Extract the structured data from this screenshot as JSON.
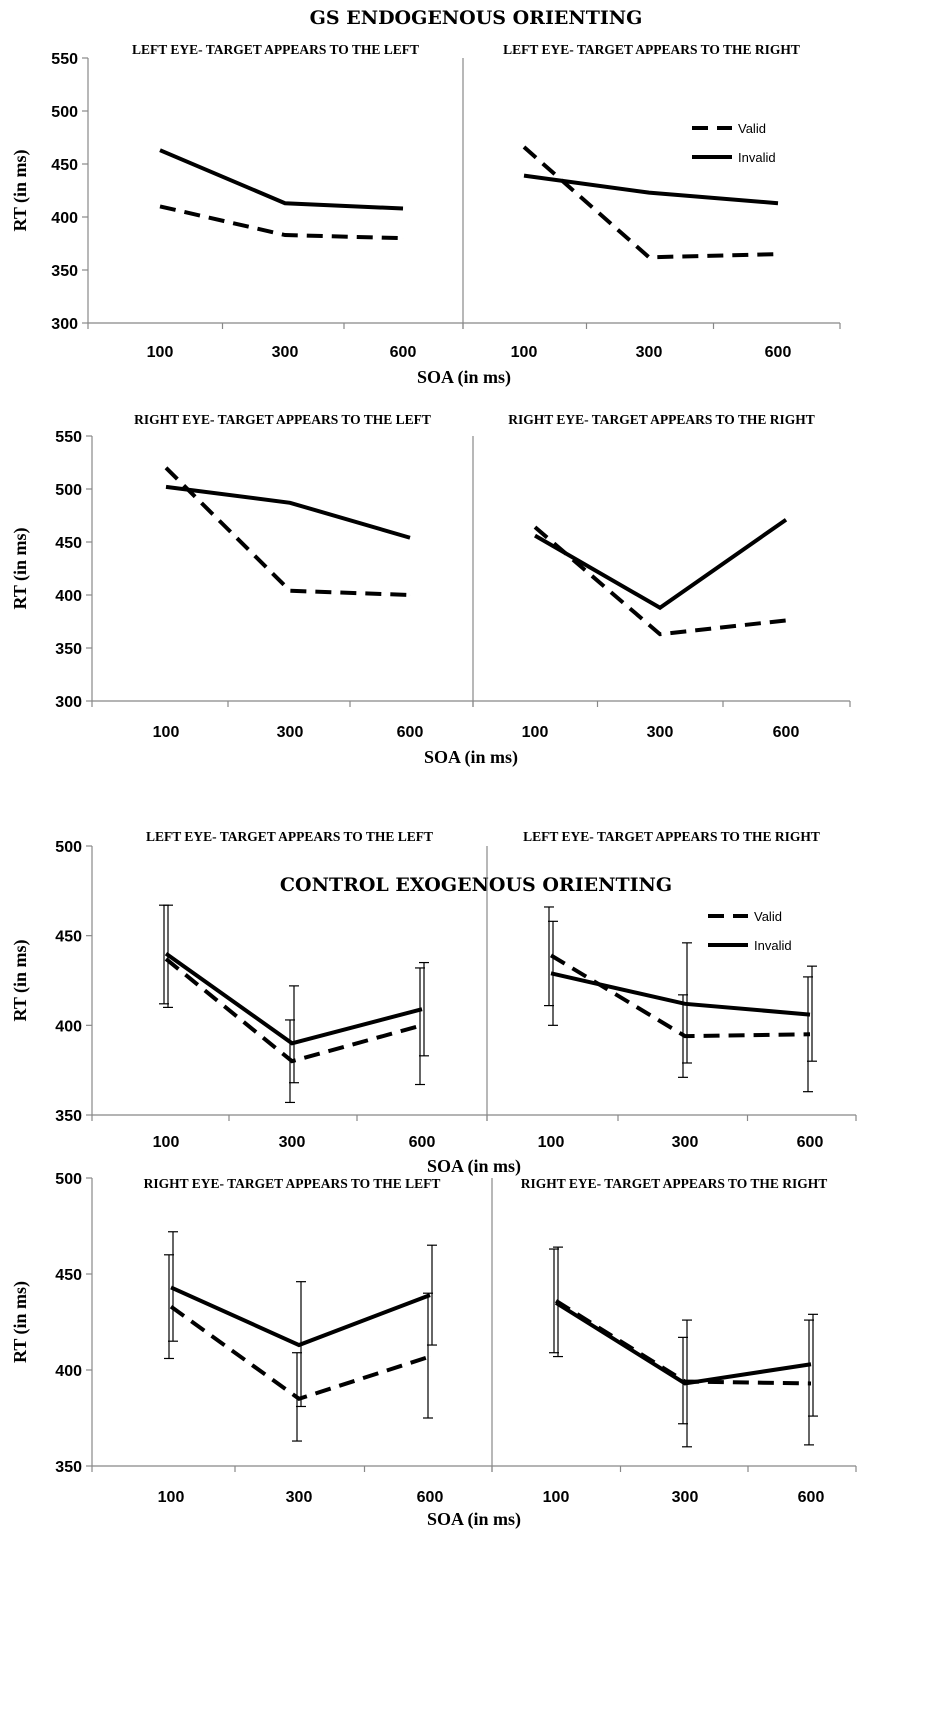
{
  "titles": {
    "endogenous": "GS ENDOGENOUS ORIENTING",
    "exogenous": "CONTROL EXOGENOUS ORIENTING"
  },
  "legend": {
    "valid": "Valid",
    "invalid": "Invalid"
  },
  "chart_data": [
    {
      "type": "line",
      "title": "LEFT EYE- TARGET APPEARS TO THE LEFT",
      "xlabel": "SOA (in ms)",
      "ylabel": "RT (in ms)",
      "categories": [
        "100",
        "300",
        "600"
      ],
      "yticks": [
        300,
        350,
        400,
        450,
        500,
        550
      ],
      "ylim": [
        300,
        550
      ],
      "series": [
        {
          "name": "Valid",
          "values": [
            410,
            383,
            380
          ]
        },
        {
          "name": "Invalid",
          "values": [
            463,
            413,
            408
          ]
        }
      ]
    },
    {
      "type": "line",
      "title": "LEFT EYE- TARGET APPEARS TO THE RIGHT",
      "xlabel": "SOA (in ms)",
      "ylabel": "RT (in ms)",
      "categories": [
        "100",
        "300",
        "600"
      ],
      "yticks": [
        300,
        350,
        400,
        450,
        500,
        550
      ],
      "ylim": [
        300,
        550
      ],
      "legend": "top-right",
      "series": [
        {
          "name": "Valid",
          "values": [
            466,
            362,
            365
          ]
        },
        {
          "name": "Invalid",
          "values": [
            439,
            423,
            413
          ]
        }
      ]
    },
    {
      "type": "line",
      "title": "RIGHT EYE- TARGET APPEARS TO THE LEFT",
      "xlabel": "SOA (in ms)",
      "ylabel": "RT (in ms)",
      "categories": [
        "100",
        "300",
        "600"
      ],
      "yticks": [
        300,
        350,
        400,
        450,
        500,
        550
      ],
      "ylim": [
        300,
        550
      ],
      "series": [
        {
          "name": "Valid",
          "values": [
            520,
            404,
            400
          ]
        },
        {
          "name": "Invalid",
          "values": [
            502,
            487,
            454
          ]
        }
      ]
    },
    {
      "type": "line",
      "title": "RIGHT EYE- TARGET APPEARS TO THE RIGHT",
      "xlabel": "SOA (in ms)",
      "ylabel": "RT (in ms)",
      "categories": [
        "100",
        "300",
        "600"
      ],
      "yticks": [
        300,
        350,
        400,
        450,
        500,
        550
      ],
      "ylim": [
        300,
        550
      ],
      "series": [
        {
          "name": "Valid",
          "values": [
            464,
            363,
            376
          ]
        },
        {
          "name": "Invalid",
          "values": [
            456,
            388,
            471
          ]
        }
      ]
    },
    {
      "type": "line",
      "title": "LEFT EYE- TARGET APPEARS TO THE LEFT",
      "xlabel": "SOA (in ms)",
      "ylabel": "RT (in ms)",
      "categories": [
        "100",
        "300",
        "600"
      ],
      "yticks": [
        350,
        400,
        450,
        500
      ],
      "ylim": [
        350,
        500
      ],
      "series": [
        {
          "name": "Valid",
          "values": [
            437,
            380,
            400
          ],
          "error_low": [
            412,
            357,
            367
          ],
          "error_high": [
            467,
            403,
            432
          ]
        },
        {
          "name": "Invalid",
          "values": [
            440,
            390,
            409
          ],
          "error_low": [
            410,
            368,
            383
          ],
          "error_high": [
            467,
            422,
            435
          ]
        }
      ]
    },
    {
      "type": "line",
      "title": "LEFT EYE- TARGET APPEARS TO THE RIGHT",
      "xlabel": "SOA (in ms)",
      "ylabel": "RT (in ms)",
      "categories": [
        "100",
        "300",
        "600"
      ],
      "yticks": [
        350,
        400,
        450,
        500
      ],
      "ylim": [
        350,
        500
      ],
      "legend": "top-right",
      "series": [
        {
          "name": "Valid",
          "values": [
            439,
            394,
            395
          ],
          "error_low": [
            411,
            371,
            363
          ],
          "error_high": [
            466,
            417,
            427
          ]
        },
        {
          "name": "Invalid",
          "values": [
            429,
            412,
            406
          ],
          "error_low": [
            400,
            379,
            380
          ],
          "error_high": [
            458,
            446,
            433
          ]
        }
      ]
    },
    {
      "type": "line",
      "title": "RIGHT EYE- TARGET APPEARS TO THE LEFT",
      "xlabel": "SOA (in ms)",
      "ylabel": "RT (in ms)",
      "categories": [
        "100",
        "300",
        "600"
      ],
      "yticks": [
        350,
        400,
        450,
        500
      ],
      "ylim": [
        350,
        500
      ],
      "series": [
        {
          "name": "Valid",
          "values": [
            433,
            385,
            407
          ],
          "error_low": [
            406,
            363,
            375
          ],
          "error_high": [
            460,
            409,
            440
          ]
        },
        {
          "name": "Invalid",
          "values": [
            443,
            413,
            439
          ],
          "error_low": [
            415,
            381,
            413
          ],
          "error_high": [
            472,
            446,
            465
          ]
        }
      ]
    },
    {
      "type": "line",
      "title": "RIGHT EYE- TARGET APPEARS TO THE RIGHT",
      "xlabel": "SOA (in ms)",
      "ylabel": "RT (in ms)",
      "categories": [
        "100",
        "300",
        "600"
      ],
      "yticks": [
        350,
        400,
        450,
        500
      ],
      "ylim": [
        350,
        500
      ],
      "series": [
        {
          "name": "Valid",
          "values": [
            436,
            394,
            393
          ],
          "error_low": [
            409,
            372,
            361
          ],
          "error_high": [
            463,
            417,
            426
          ]
        },
        {
          "name": "Invalid",
          "values": [
            435,
            393,
            403
          ],
          "error_low": [
            407,
            360,
            376
          ],
          "error_high": [
            464,
            426,
            429
          ]
        }
      ]
    }
  ]
}
